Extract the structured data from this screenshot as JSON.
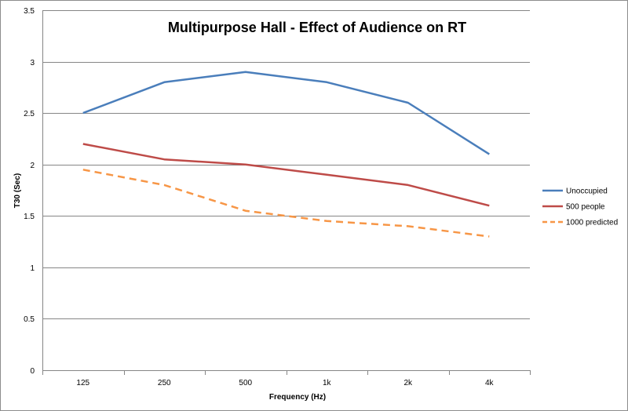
{
  "chart_data": {
    "type": "line",
    "title": "Multipurpose Hall - Effect of Audience on RT",
    "xlabel": "Frequency (Hz)",
    "ylabel": "T30 (Sec)",
    "categories": [
      "125",
      "250",
      "500",
      "1k",
      "2k",
      "4k"
    ],
    "ylim": [
      0,
      3.5
    ],
    "yticks": [
      "0",
      "0.5",
      "1",
      "1.5",
      "2",
      "2.5",
      "3",
      "3.5"
    ],
    "grid": "horizontal",
    "legend_position": "right",
    "series": [
      {
        "name": "Unoccupied",
        "values": [
          2.5,
          2.8,
          2.9,
          2.8,
          2.6,
          2.1
        ],
        "color": "#4a7ebb",
        "dash": "solid"
      },
      {
        "name": "500 people",
        "values": [
          2.2,
          2.05,
          2.0,
          1.9,
          1.8,
          1.6
        ],
        "color": "#be4b48",
        "dash": "solid"
      },
      {
        "name": "1000 predicted",
        "values": [
          1.95,
          1.8,
          1.55,
          1.45,
          1.4,
          1.3
        ],
        "color": "#f79646",
        "dash": "dashed"
      }
    ]
  }
}
